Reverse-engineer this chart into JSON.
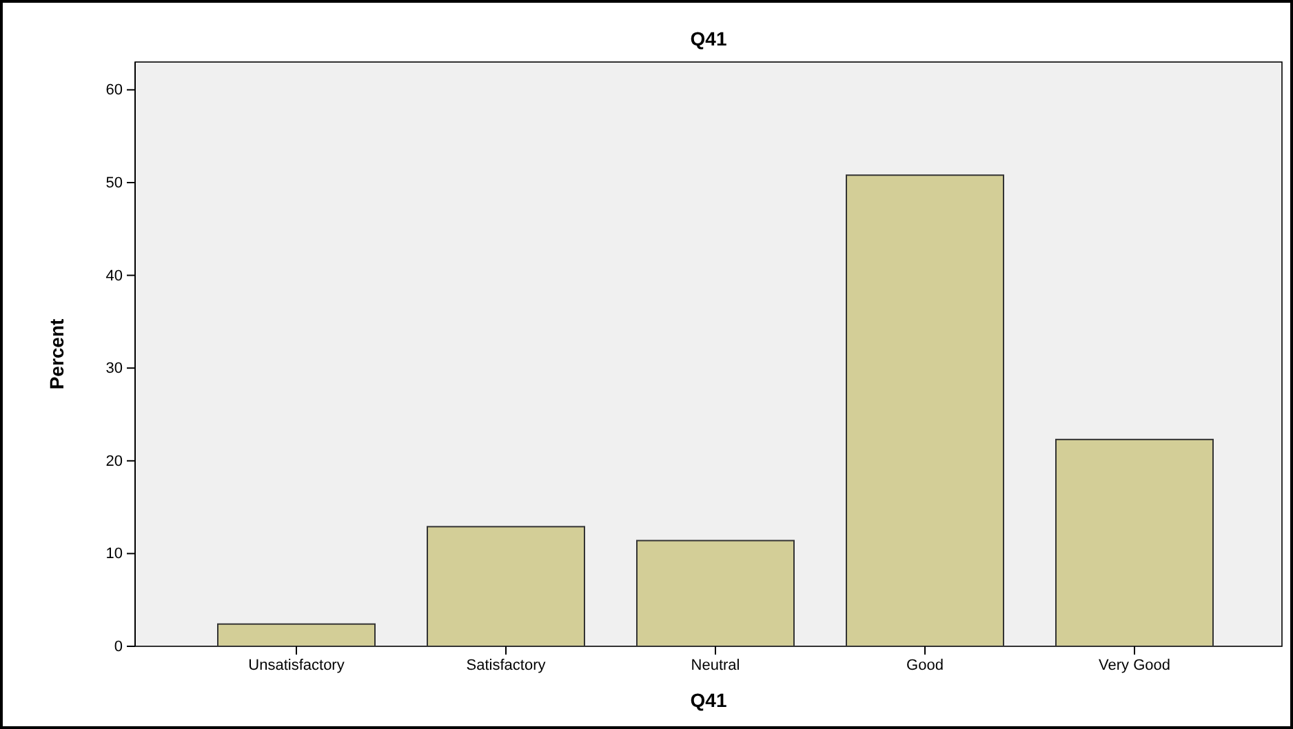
{
  "chart_data": {
    "type": "bar",
    "title": "Q41",
    "xlabel": "Q41",
    "ylabel": "Percent",
    "categories": [
      "Unsatisfactory",
      "Satisfactory",
      "Neutral",
      "Good",
      "Very Good"
    ],
    "values": [
      2.4,
      12.9,
      11.4,
      50.8,
      22.3
    ],
    "color": "#d3ce97",
    "ylim": [
      0,
      63
    ],
    "yticks": [
      0,
      10,
      20,
      30,
      40,
      50,
      60
    ],
    "grid": false
  }
}
